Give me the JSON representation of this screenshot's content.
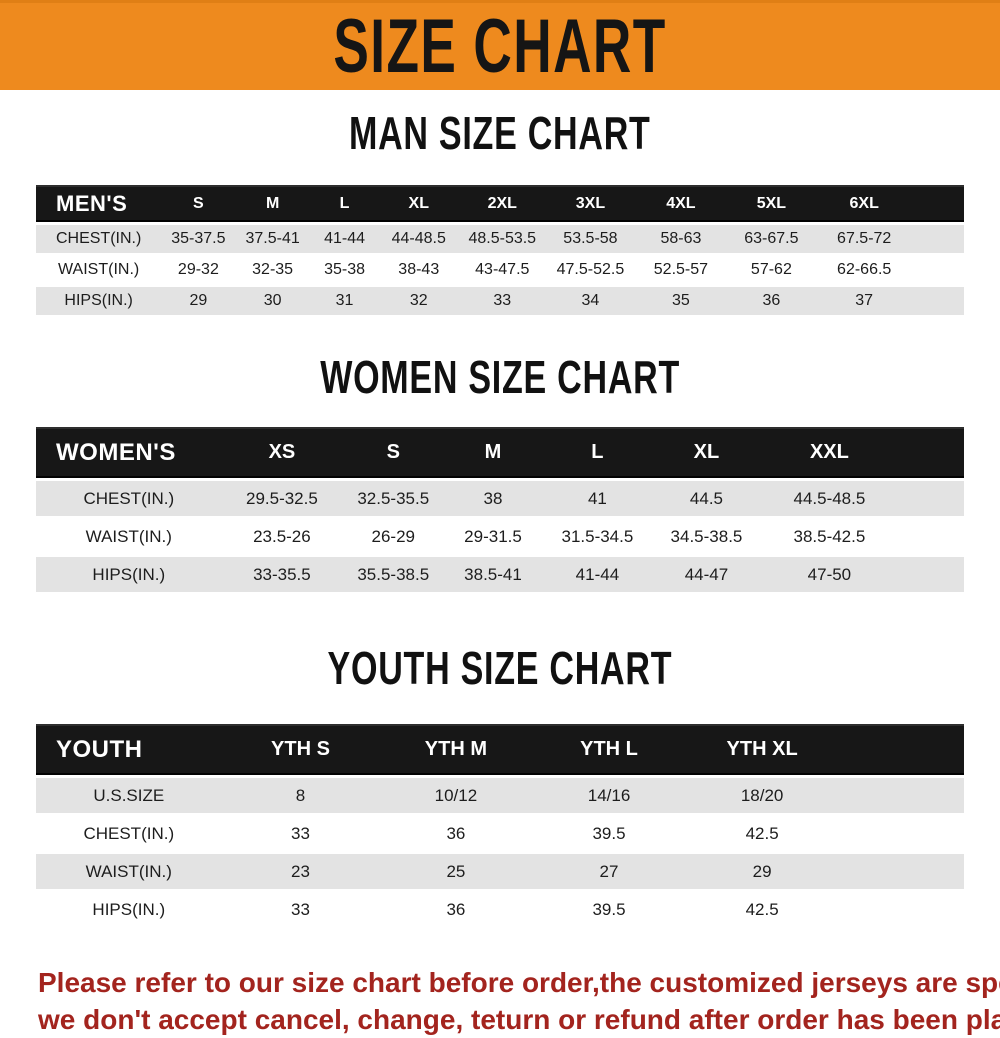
{
  "banner": {
    "title": "SIZE CHART",
    "background": "#ee8a1e",
    "text_color": "#151515"
  },
  "sections": [
    {
      "title": "MAN SIZE CHART",
      "header_label": "MEN'S",
      "columns": [
        "S",
        "M",
        "L",
        "XL",
        "2XL",
        "3XL",
        "4XL",
        "5XL",
        "6XL"
      ],
      "rows": [
        {
          "label": "CHEST(IN.)",
          "values": [
            "35-37.5",
            "37.5-41",
            "41-44",
            "44-48.5",
            "48.5-53.5",
            "53.5-58",
            "58-63",
            "63-67.5",
            "67.5-72"
          ]
        },
        {
          "label": "WAIST(IN.)",
          "values": [
            "29-32",
            "32-35",
            "35-38",
            "38-43",
            "43-47.5",
            "47.5-52.5",
            "52.5-57",
            "57-62",
            "62-66.5"
          ]
        },
        {
          "label": "HIPS(IN.)",
          "values": [
            "29",
            "30",
            "31",
            "32",
            "33",
            "34",
            "35",
            "36",
            "37"
          ]
        }
      ]
    },
    {
      "title": "WOMEN SIZE CHART",
      "header_label": "WOMEN'S",
      "columns": [
        "XS",
        "S",
        "M",
        "L",
        "XL",
        "XXL"
      ],
      "rows": [
        {
          "label": "CHEST(IN.)",
          "values": [
            "29.5-32.5",
            "32.5-35.5",
            "38",
            "41",
            "44.5",
            "44.5-48.5"
          ]
        },
        {
          "label": "WAIST(IN.)",
          "values": [
            "23.5-26",
            "26-29",
            "29-31.5",
            "31.5-34.5",
            "34.5-38.5",
            "38.5-42.5"
          ]
        },
        {
          "label": "HIPS(IN.)",
          "values": [
            "33-35.5",
            "35.5-38.5",
            "38.5-41",
            "41-44",
            "44-47",
            "47-50"
          ]
        }
      ]
    },
    {
      "title": "YOUTH SIZE CHART",
      "header_label": "YOUTH",
      "columns": [
        "YTH S",
        "YTH M",
        "YTH L",
        "YTH XL"
      ],
      "rows": [
        {
          "label": "U.S.SIZE",
          "values": [
            "8",
            "10/12",
            "14/16",
            "18/20"
          ]
        },
        {
          "label": "CHEST(IN.)",
          "values": [
            "33",
            "36",
            "39.5",
            "42.5"
          ]
        },
        {
          "label": "WAIST(IN.)",
          "values": [
            "23",
            "25",
            "27",
            "29"
          ]
        },
        {
          "label": "HIPS(IN.)",
          "values": [
            "33",
            "36",
            "39.5",
            "42.5"
          ]
        }
      ]
    }
  ],
  "footer": {
    "lines": [
      "Please refer to our size chart before order,the customized jerseys are special products,",
      "we don't accept cancel, change, teturn or refund after order has been placed!"
    ],
    "text_color": "#a3241e"
  },
  "colors": {
    "banner_orange": "#ee8a1e",
    "header_bar_black": "#171717",
    "row_gray": "#e3e3e3",
    "footer_red": "#a3241e"
  }
}
